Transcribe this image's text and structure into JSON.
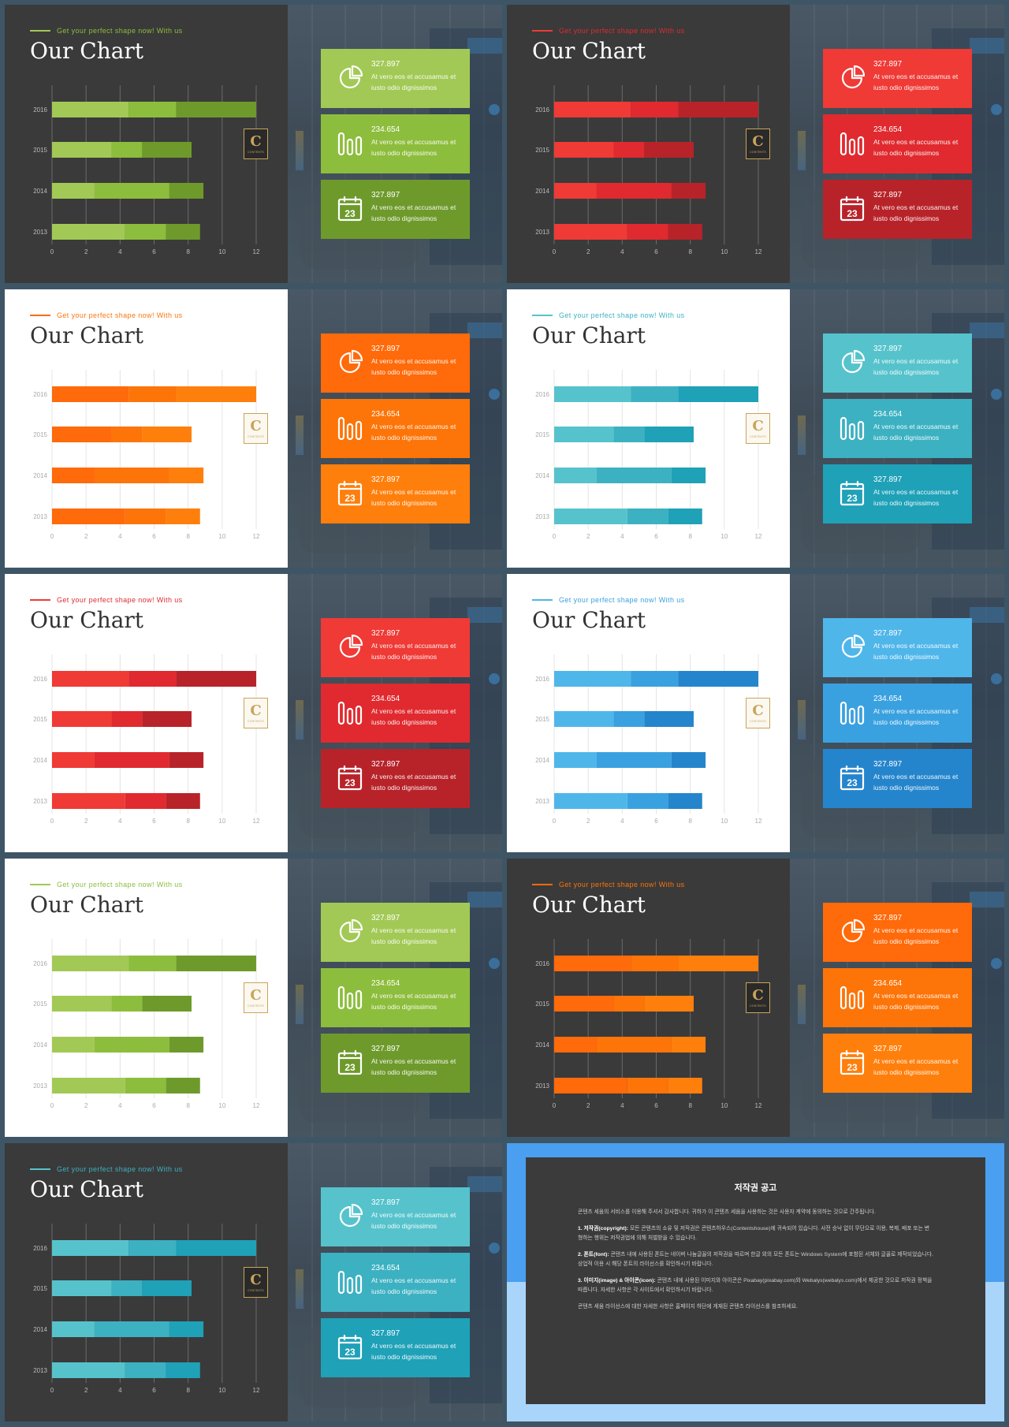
{
  "slide_common": {
    "tagline": "Get your perfect shape now!  With us",
    "title": "Our Chart",
    "logo_letter": "C",
    "logo_text": "CONTENTS"
  },
  "slides": [
    {
      "theme": "dark",
      "colors": [
        "#a2c955",
        "#8dbd3c",
        "#6e9a2c"
      ],
      "cards": [
        {
          "icon": "pie-chart-icon",
          "value": "327.897",
          "text": "At vero eos et accusamus et iusto odio dignissimos"
        },
        {
          "icon": "bar-chart-icon",
          "value": "234.654",
          "text": "At vero eos et accusamus et iusto odio dignissimos"
        },
        {
          "icon": "calendar-icon",
          "value": "327.897",
          "text": "At vero eos et accusamus et iusto odio dignissimos"
        }
      ]
    },
    {
      "theme": "dark",
      "colors": [
        "#ef3a36",
        "#e02a2f",
        "#b8232a"
      ],
      "cards": [
        {
          "icon": "pie-chart-icon",
          "value": "327.897",
          "text": "At vero eos et accusamus et iusto odio dignissimos"
        },
        {
          "icon": "bar-chart-icon",
          "value": "234.654",
          "text": "At vero eos et accusamus et iusto odio dignissimos"
        },
        {
          "icon": "calendar-icon",
          "value": "327.897",
          "text": "At vero eos et accusamus et iusto odio dignissimos"
        }
      ]
    },
    {
      "theme": "light",
      "colors": [
        "#ff6a0a",
        "#fd7408",
        "#ff7f0c"
      ],
      "cards": [
        {
          "icon": "pie-chart-icon",
          "value": "327.897",
          "text": "At vero eos et accusamus et iusto odio dignissimos"
        },
        {
          "icon": "bar-chart-icon",
          "value": "234.654",
          "text": "At vero eos et accusamus et iusto odio dignissimos"
        },
        {
          "icon": "calendar-icon",
          "value": "327.897",
          "text": "At vero eos et accusamus et iusto odio dignissimos"
        }
      ]
    },
    {
      "theme": "light",
      "colors": [
        "#56c3cc",
        "#3cb1c2",
        "#1fa1b8"
      ],
      "cards": [
        {
          "icon": "pie-chart-icon",
          "value": "327.897",
          "text": "At vero eos et accusamus et iusto odio dignissimos"
        },
        {
          "icon": "bar-chart-icon",
          "value": "234.654",
          "text": "At vero eos et accusamus et iusto odio dignissimos"
        },
        {
          "icon": "calendar-icon",
          "value": "327.897",
          "text": "At vero eos et accusamus et iusto odio dignissimos"
        }
      ]
    },
    {
      "theme": "light",
      "colors": [
        "#ef3a36",
        "#e02a2f",
        "#b8232a"
      ],
      "cards": [
        {
          "icon": "pie-chart-icon",
          "value": "327.897",
          "text": "At vero eos et accusamus et iusto odio dignissimos"
        },
        {
          "icon": "bar-chart-icon",
          "value": "234.654",
          "text": "At vero eos et accusamus et iusto odio dignissimos"
        },
        {
          "icon": "calendar-icon",
          "value": "327.897",
          "text": "At vero eos et accusamus et iusto odio dignissimos"
        }
      ]
    },
    {
      "theme": "light",
      "colors": [
        "#4fb6ea",
        "#3aa1e0",
        "#2585cc"
      ],
      "cards": [
        {
          "icon": "pie-chart-icon",
          "value": "327.897",
          "text": "At vero eos et accusamus et iusto odio dignissimos"
        },
        {
          "icon": "bar-chart-icon",
          "value": "234.654",
          "text": "At vero eos et accusamus et iusto odio dignissimos"
        },
        {
          "icon": "calendar-icon",
          "value": "327.897",
          "text": "At vero eos et accusamus et iusto odio dignissimos"
        }
      ]
    },
    {
      "theme": "light",
      "colors": [
        "#a2c955",
        "#8dbd3c",
        "#6e9a2c"
      ],
      "cards": [
        {
          "icon": "pie-chart-icon",
          "value": "327.897",
          "text": "At vero eos et accusamus et iusto odio dignissimos"
        },
        {
          "icon": "bar-chart-icon",
          "value": "234.654",
          "text": "At vero eos et accusamus et iusto odio dignissimos"
        },
        {
          "icon": "calendar-icon",
          "value": "327.897",
          "text": "At vero eos et accusamus et iusto odio dignissimos"
        }
      ]
    },
    {
      "theme": "dark",
      "colors": [
        "#ff6a0a",
        "#fd7408",
        "#ff7f0c"
      ],
      "cards": [
        {
          "icon": "pie-chart-icon",
          "value": "327.897",
          "text": "At vero eos et accusamus et iusto odio dignissimos"
        },
        {
          "icon": "bar-chart-icon",
          "value": "234.654",
          "text": "At vero eos et accusamus et iusto odio dignissimos"
        },
        {
          "icon": "calendar-icon",
          "value": "327.897",
          "text": "At vero eos et accusamus et iusto odio dignissimos"
        }
      ]
    },
    {
      "theme": "dark",
      "colors": [
        "#56c3cc",
        "#3cb1c2",
        "#1fa1b8"
      ],
      "cards": [
        {
          "icon": "pie-chart-icon",
          "value": "327.897",
          "text": "At vero eos et accusamus et iusto odio dignissimos"
        },
        {
          "icon": "bar-chart-icon",
          "value": "234.654",
          "text": "At vero eos et accusamus et iusto odio dignissimos"
        },
        {
          "icon": "calendar-icon",
          "value": "327.897",
          "text": "At vero eos et accusamus et iusto odio dignissimos"
        }
      ]
    }
  ],
  "chart_data": {
    "type": "bar",
    "orientation": "horizontal",
    "stacked": true,
    "categories": [
      "2016",
      "2015",
      "2014",
      "2013"
    ],
    "series": [
      {
        "values": [
          4.5,
          3.5,
          2.5,
          4.3
        ]
      },
      {
        "values": [
          2.8,
          1.8,
          4.4,
          2.4
        ]
      },
      {
        "values": [
          4.7,
          2.9,
          2.0,
          2.0
        ]
      }
    ],
    "xticks": [
      0,
      2,
      4,
      6,
      8,
      10,
      12
    ],
    "xlim": [
      0,
      12
    ],
    "grid": true
  },
  "copyright": {
    "title": "저작권 공고",
    "intro": "콘텐츠 세움의 서비스를 이용해 주셔서 감사합니다. 귀하가 이 콘텐츠 세움을 사용하는 것은 사용자 계약에 동의하는 것으로 간주됩니다.",
    "item1_head": "1. 저작권(copyright):",
    "item1": "모든 콘텐츠의 소유 및 저작권은 콘텐츠하우스(Contentshouse)에 귀속되어 있습니다. 사전 승낙 없이 무단으로 이용, 복제, 배포 또는 변형하는 행위는 저작권법에 의해 처벌받을 수 있습니다.",
    "item2_head": "2. 폰트(font):",
    "item2": "콘텐츠 내에 사용된 폰트는 네이버 나눔글꼴의 저작권을 따르며 한글 외의 모든 폰트는 Windows System에 포함된 서체와 글꼴로 제작되었습니다. 상업적 이용 시 해당 폰트의 라이선스를 확인하시기 바랍니다.",
    "item3_head": "3. 이미지(image) & 아이콘(icon):",
    "item3": "콘텐츠 내에 사용된 이미지와 아이콘은 Pixabay(pixabay.com)와 Webalys(webalys.com)에서 제공한 것으로 저작권 정책을 따릅니다. 자세한 사항은 각 사이트에서 확인하시기 바랍니다.",
    "outro": "콘텐츠 세움 라이선스에 대한 자세한 사항은 홈페이지 하단에 게재된 콘텐츠 라이선스를 참조하세요."
  }
}
